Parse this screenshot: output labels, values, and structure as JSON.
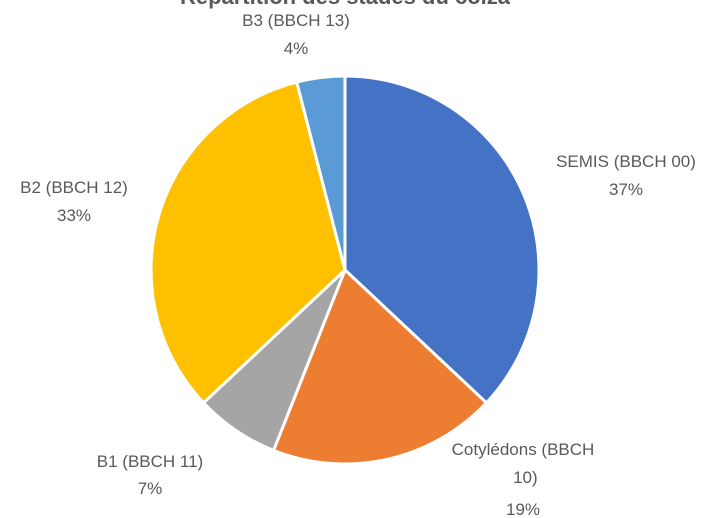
{
  "chart_data": {
    "type": "pie",
    "title": "Répartition des stades du colza",
    "slices": [
      {
        "label": "SEMIS (BBCH 00)",
        "value": 37,
        "value_label": "37%",
        "color": "#4472C4"
      },
      {
        "label": "Cotylédons (BBCH 10)",
        "value": 19,
        "value_label": "19%",
        "color": "#ED7D31"
      },
      {
        "label": "B1 (BBCH 11)",
        "value": 7,
        "value_label": "7%",
        "color": "#A5A5A5"
      },
      {
        "label": "B2 (BBCH 12)",
        "value": 33,
        "value_label": "33%",
        "color": "#FFC000"
      },
      {
        "label": "B3 (BBCH 13)",
        "value": 4,
        "value_label": "4%",
        "color": "#5B9BD5"
      }
    ],
    "start_angle": "12 o'clock",
    "direction": "clockwise",
    "legend": "none",
    "data_labels": "outside, category name and percentage"
  }
}
